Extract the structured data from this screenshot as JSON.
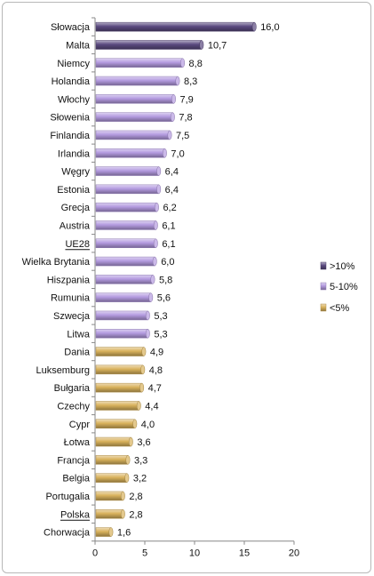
{
  "chart_data": {
    "type": "bar",
    "orientation": "horizontal",
    "categories": [
      "Słowacja",
      "Malta",
      "Niemcy",
      "Holandia",
      "Włochy",
      "Słowenia",
      "Finlandia",
      "Irlandia",
      "Węgry",
      "Estonia",
      "Grecja",
      "Austria",
      "UE28",
      "Wielka Brytania",
      "Hiszpania",
      "Rumunia",
      "Szwecja",
      "Litwa",
      "Dania",
      "Luksemburg",
      "Bułgaria",
      "Czechy",
      "Cypr",
      "Łotwa",
      "Francja",
      "Belgia",
      "Portugalia",
      "Polska",
      "Chorwacja"
    ],
    "values": [
      16.0,
      10.7,
      8.8,
      8.3,
      7.9,
      7.8,
      7.5,
      7.0,
      6.4,
      6.4,
      6.2,
      6.1,
      6.1,
      6.0,
      5.8,
      5.6,
      5.3,
      5.3,
      4.9,
      4.8,
      4.7,
      4.4,
      4.0,
      3.6,
      3.3,
      3.2,
      2.8,
      2.8,
      1.6
    ],
    "value_labels": [
      "16,0",
      "10,7",
      "8,8",
      "8,3",
      "7,9",
      "7,8",
      "7,5",
      "7,0",
      "6,4",
      "6,4",
      "6,2",
      "6,1",
      "6,1",
      "6,0",
      "5,8",
      "5,6",
      "5,3",
      "5,3",
      "4,9",
      "4,8",
      "4,7",
      "4,4",
      "4,0",
      "3,6",
      "3,3",
      "3,2",
      "2,8",
      "2,8",
      "1,6"
    ],
    "groups": [
      "gt10",
      "gt10",
      "5to10",
      "5to10",
      "5to10",
      "5to10",
      "5to10",
      "5to10",
      "5to10",
      "5to10",
      "5to10",
      "5to10",
      "5to10",
      "5to10",
      "5to10",
      "5to10",
      "5to10",
      "5to10",
      "lt5",
      "lt5",
      "lt5",
      "lt5",
      "lt5",
      "lt5",
      "lt5",
      "lt5",
      "lt5",
      "lt5",
      "lt5"
    ],
    "underlined_categories": [
      "UE28",
      "Polska"
    ],
    "xlim": [
      0,
      20
    ],
    "x_ticks": [
      0,
      5,
      10,
      15,
      20
    ],
    "grid": false,
    "legend": {
      "placement": "right",
      "entries": [
        {
          "key": "gt10",
          "label": ">10%",
          "color": "#5b4a80"
        },
        {
          "key": "5to10",
          "label": "5-10%",
          "color": "#b49be0"
        },
        {
          "key": "lt5",
          "label": "<5%",
          "color": "#d9b25c"
        }
      ]
    },
    "title": "",
    "xlabel": "",
    "ylabel": ""
  }
}
